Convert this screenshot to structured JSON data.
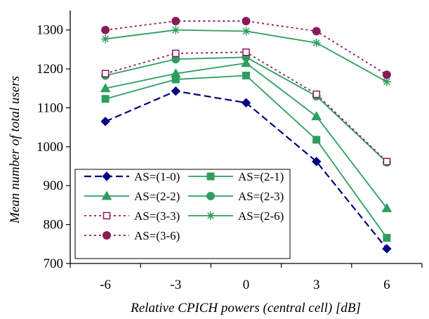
{
  "chart_data": {
    "type": "line",
    "x": [
      -6,
      -3,
      0,
      3,
      6
    ],
    "x_tick_labels": [
      "-6",
      "-3",
      "0",
      "3",
      "6"
    ],
    "xlabel": "Relative CPICH powers (central cell) [dB]",
    "ylabel": "Mean number of total users",
    "ylim": [
      700,
      1350
    ],
    "y_ticks": [
      700,
      800,
      900,
      1000,
      1100,
      1200,
      1300
    ],
    "grid": false,
    "legend_position": "bottom-left",
    "series": [
      {
        "name": "AS=(1-0)",
        "values": [
          1065,
          1143,
          1113,
          962,
          738
        ],
        "color": "#000080",
        "dash": "dashed",
        "marker": "diamond"
      },
      {
        "name": "AS=(2-1)",
        "values": [
          1123,
          1173,
          1183,
          1018,
          766
        ],
        "color": "#2e9e5e",
        "dash": "solid",
        "marker": "square"
      },
      {
        "name": "AS=(2-2)",
        "values": [
          1150,
          1188,
          1215,
          1078,
          842
        ],
        "color": "#2e9e5e",
        "dash": "solid",
        "marker": "triangle"
      },
      {
        "name": "AS=(2-3)",
        "values": [
          1183,
          1225,
          1230,
          1130,
          960
        ],
        "color": "#2e9e5e",
        "dash": "solid",
        "marker": "circle"
      },
      {
        "name": "AS=(3-3)",
        "values": [
          1188,
          1240,
          1243,
          1135,
          962
        ],
        "color": "#8b1a5a",
        "dash": "dotted",
        "marker": "open-square"
      },
      {
        "name": "AS=(2-6)",
        "values": [
          1277,
          1300,
          1297,
          1267,
          1167
        ],
        "color": "#2e9e5e",
        "dash": "solid",
        "marker": "asterisk"
      },
      {
        "name": "AS=(3-6)",
        "values": [
          1300,
          1323,
          1323,
          1297,
          1185
        ],
        "color": "#8b1a5a",
        "dash": "dotted",
        "marker": "circle"
      }
    ]
  }
}
